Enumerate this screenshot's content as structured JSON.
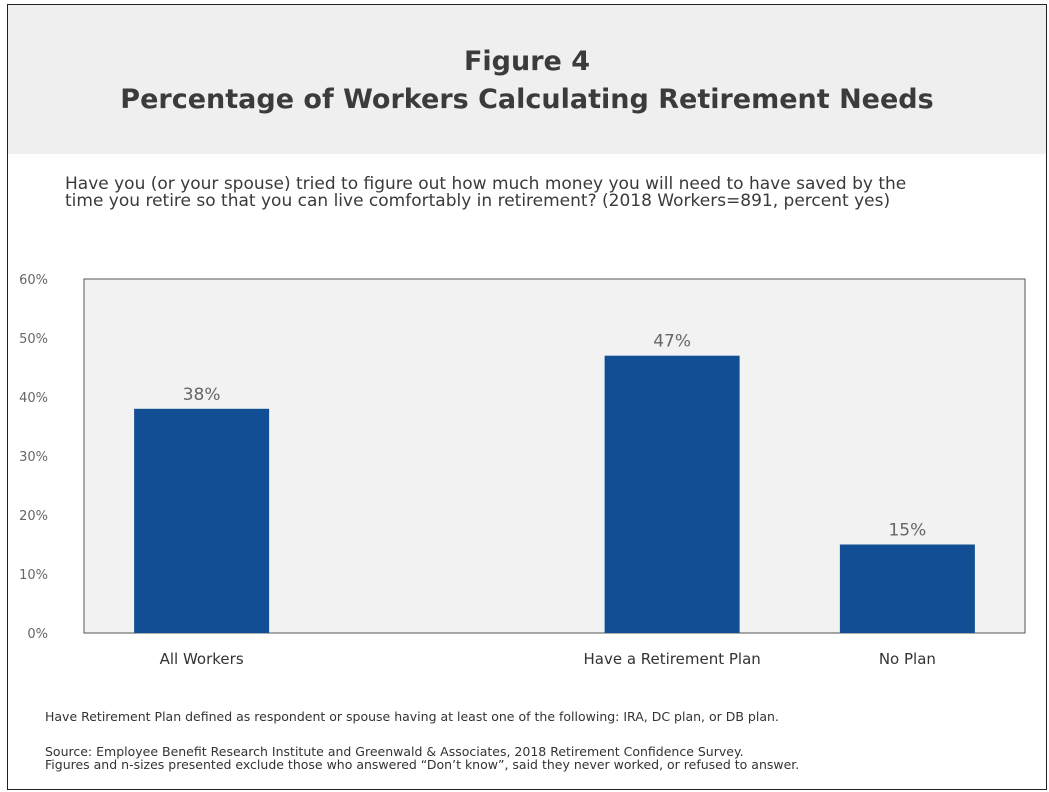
{
  "header": {
    "title_line1": "Figure 4",
    "title_line2": "Percentage of Workers Calculating Retirement Needs"
  },
  "question": {
    "line1": "Have you (or your spouse) tried to figure out how much money you will need to have saved by the",
    "line2": "time you retire so that you can live comfortably in retirement? (2018 Workers=891, percent yes)"
  },
  "chart_data": {
    "type": "bar",
    "categories": [
      "All Workers",
      "",
      "Have a Retirement  Plan",
      "No Plan"
    ],
    "values": [
      38,
      null,
      47,
      15
    ],
    "data_labels": [
      "38%",
      "",
      "47%",
      "15%"
    ],
    "y_ticks": [
      "0%",
      "10%",
      "20%",
      "30%",
      "40%",
      "50%",
      "60%"
    ],
    "ylim": [
      0,
      60
    ],
    "grid": false,
    "plot_background": "#f2f2f2",
    "bar_color": "#114e93"
  },
  "footnotes": {
    "definition": "Have Retirement Plan defined as respondent or spouse having at least one of the following: IRA, DC plan, or DB plan.",
    "source": "Source: Employee Benefit Research Institute and Greenwald & Associates, 2018 Retirement Confidence Survey.",
    "note": "Figures and n-sizes presented exclude those who answered “Don’t know”, said they never worked, or refused to answer."
  }
}
